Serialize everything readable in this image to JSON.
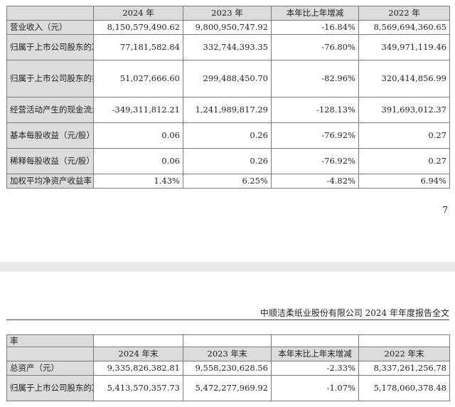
{
  "table1": {
    "headers": [
      "",
      "2024 年",
      "2023 年",
      "本年比上年增减",
      "2022 年"
    ],
    "rows": [
      {
        "label": "营业收入（元）",
        "values": [
          "8,150,579,490.62",
          "9,800,950,747.92",
          "-16.84%",
          "8,569,694,360.65"
        ]
      },
      {
        "label": "归属于上市公司股东的净利润（元）",
        "values": [
          "77,181,582.84",
          "332,744,393.35",
          "-76.80%",
          "349,971,119.46"
        ]
      },
      {
        "label": "归属于上市公司股东的扣除非经常性损益的净利润（元）",
        "values": [
          "51,027,666.60",
          "299,488,450.70",
          "-82.96%",
          "320,414,856.99"
        ]
      },
      {
        "label": "经营活动产生的现金流量净额（元）",
        "values": [
          "-349,311,812.21",
          "1,241,989,817.29",
          "-128.13%",
          "391,693,012.37"
        ]
      },
      {
        "label": "基本每股收益（元/股）",
        "values": [
          "0.06",
          "0.26",
          "-76.92%",
          "0.27"
        ]
      },
      {
        "label": "稀释每股收益（元/股）",
        "values": [
          "0.06",
          "0.26",
          "-76.92%",
          "0.27"
        ]
      },
      {
        "label": "加权平均净资产收益率",
        "values": [
          "1.43%",
          "6.25%",
          "-4.82%",
          "6.94%"
        ]
      }
    ]
  },
  "page_number": "7",
  "document_title": "中顺洁柔纸业股份有限公司 2024 年年度报告全文",
  "table2": {
    "top_label": "率",
    "headers": [
      "",
      "2024 年末",
      "2023 年末",
      "本年末比上年末增减",
      "2022 年末"
    ],
    "rows": [
      {
        "label": "总资产（元）",
        "values": [
          "9,335,826,382.81",
          "9,558,230,628.56",
          "-2.33%",
          "8,337,261,256.78"
        ]
      },
      {
        "label": "归属于上市公司股东的净资产（元）",
        "values": [
          "5,413,570,357.73",
          "5,472,277,969.92",
          "-1.07%",
          "5,178,060,378.48"
        ]
      }
    ]
  }
}
